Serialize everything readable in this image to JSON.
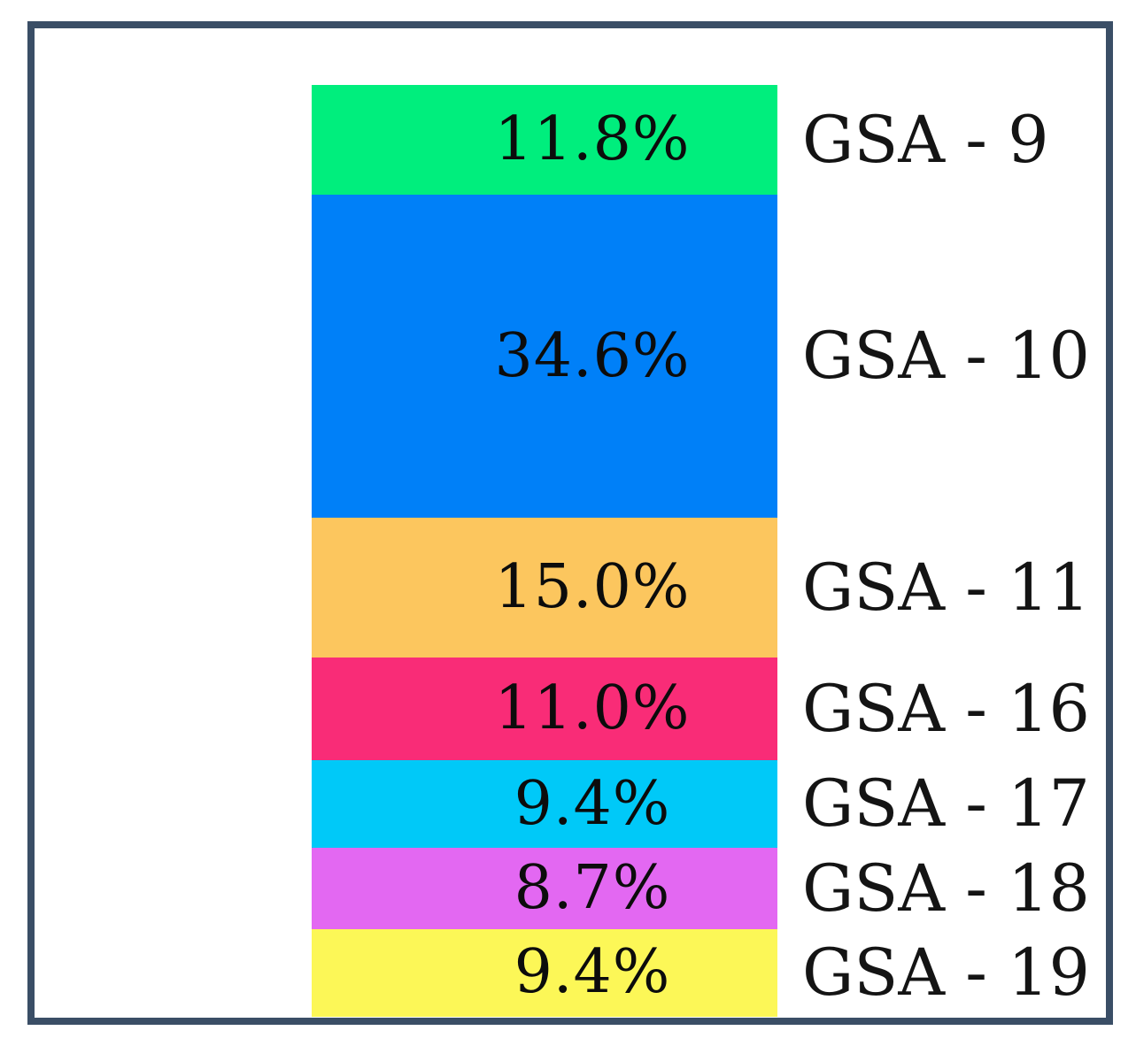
{
  "figure": {
    "background_color": "#FFFFFF",
    "frame_border_color": "#3A4E66",
    "text_color": "#141414"
  },
  "chart_data": {
    "type": "bar",
    "subtype": "single-column-stacked",
    "orientation": "vertical",
    "title": "",
    "xlabel": "",
    "ylabel": "",
    "grid": false,
    "axes_visible": false,
    "label_position": "right",
    "categories": [
      "GSA - 9",
      "GSA - 10",
      "GSA - 11",
      "GSA - 16",
      "GSA - 17",
      "GSA - 18",
      "GSA - 19"
    ],
    "values": [
      11.8,
      34.6,
      15.0,
      11.0,
      9.4,
      8.7,
      9.4
    ],
    "value_labels": [
      "11.8%",
      "34.6%",
      "15.0%",
      "11.0%",
      "9.4%",
      "8.7%",
      "9.4%"
    ],
    "colors": [
      "#00EE7D",
      "#0080F8",
      "#FCC65E",
      "#F92C77",
      "#00C9F8",
      "#E368F2",
      "#FCF757"
    ],
    "total": 99.9,
    "units": "percent"
  }
}
